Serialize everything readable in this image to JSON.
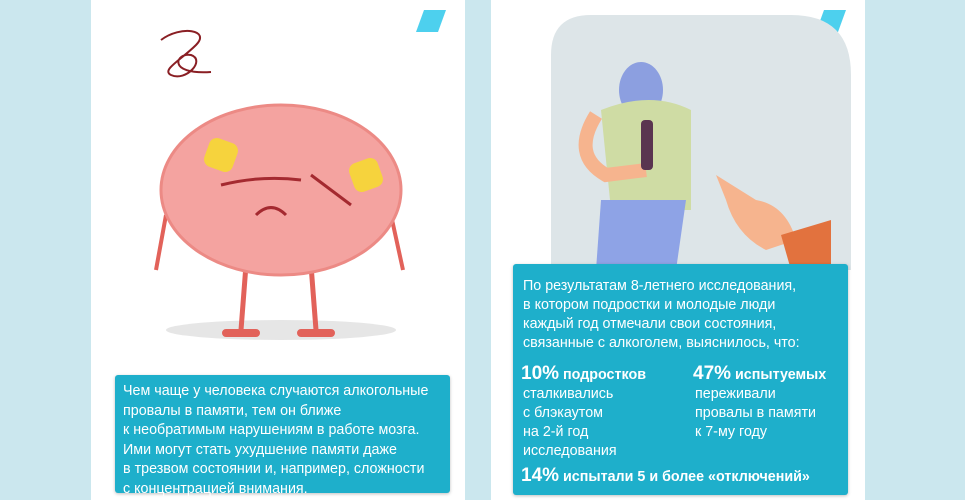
{
  "left_card": {
    "text": "Чем чаще у человека случаются алкогольные\nпровалы в памяти, тем он ближе\nк необратимым нарушениям в работе мозга.\nИми могут стать ухудшение памяти даже\nв трезвом состоянии и, например, сложности\nс концентрацией внимания."
  },
  "right_card": {
    "intro": "По результатам 8-летнего исследования,\nв котором подростки и молодые люди\nкаждый год отмечали свои состояния,\nсвязанные с алкоголем, выяснилось, что:",
    "stats": [
      {
        "value": "10%",
        "label": "подростков",
        "detail": "сталкивались\nс блэкаутом\nна 2-й год\nисследования"
      },
      {
        "value": "47%",
        "label": "испытуемых",
        "detail": "переживали\nпровалы в памяти\nк 7-му году"
      },
      {
        "value": "14%",
        "label": "испытали 5 и более «отключений»",
        "detail": ""
      }
    ]
  },
  "colors": {
    "background": "#cbe7ee",
    "card": "#1eafcb",
    "accent": "#4dd0ee",
    "brain": "#f4a3a0"
  }
}
